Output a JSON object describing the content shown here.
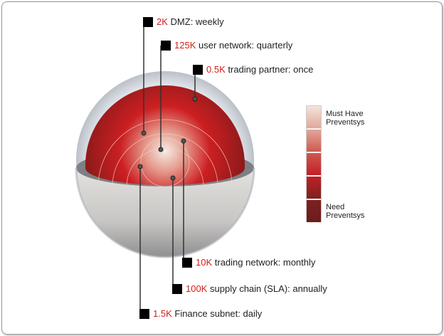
{
  "labels": [
    {
      "id": "dmz",
      "value": "2K",
      "text": "DMZ: weekly"
    },
    {
      "id": "user-network",
      "value": "125K",
      "text": "user network: quarterly"
    },
    {
      "id": "trading-partner",
      "value": "0.5K",
      "text": "trading partner: once"
    },
    {
      "id": "trading-network",
      "value": "10K",
      "text": "trading network: monthly"
    },
    {
      "id": "supply-chain",
      "value": "100K",
      "text": "supply chain (SLA): annually"
    },
    {
      "id": "finance-subnet",
      "value": "1.5K",
      "text": "Finance subnet: daily"
    }
  ],
  "legend": {
    "top_line1": "Must Have",
    "top_line2": "Preventsys",
    "bottom_line1": "Need",
    "bottom_line2": "Preventsys",
    "colors": [
      "#f3e4dc",
      "#e0a89a",
      "#d0584f",
      "#c21f26",
      "#7c2220"
    ]
  },
  "colors": {
    "value_text": "#d0201b"
  }
}
